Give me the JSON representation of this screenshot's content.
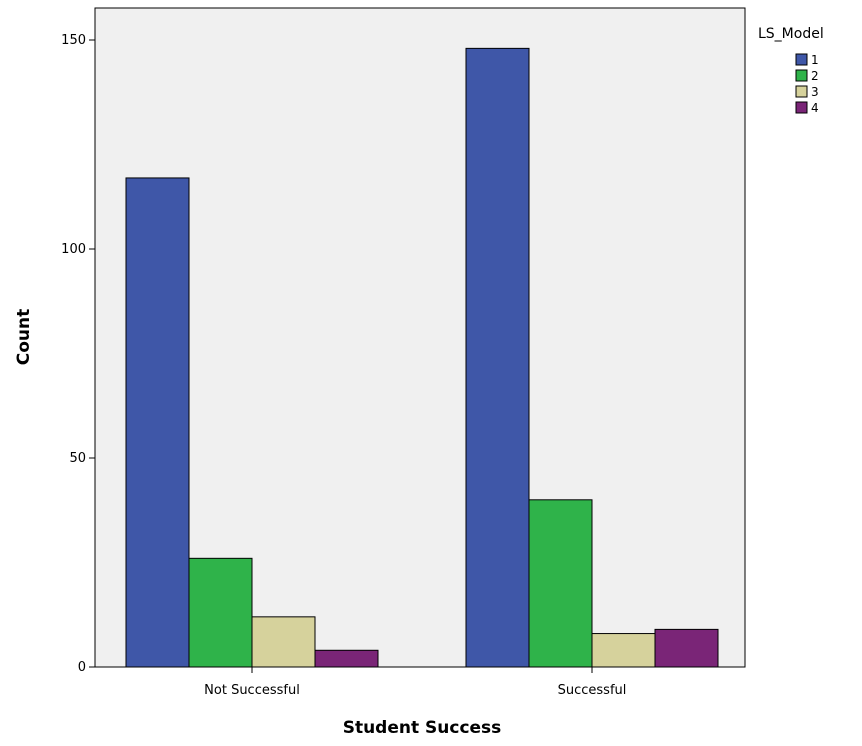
{
  "chart_data": {
    "type": "bar",
    "xlabel": "Student Success",
    "ylabel": "Count",
    "categories": [
      "Not Successful",
      "Successful"
    ],
    "ylim": [
      0,
      150
    ],
    "yticks": [
      0,
      50,
      100,
      150
    ],
    "grid": false,
    "legend": {
      "title": "LS_Model",
      "position": "right"
    },
    "series": [
      {
        "name": "1",
        "color": "#3f57a8",
        "values": [
          117,
          148
        ]
      },
      {
        "name": "2",
        "color": "#2fb34a",
        "values": [
          26,
          40
        ]
      },
      {
        "name": "3",
        "color": "#d6d29c",
        "values": [
          12,
          8
        ]
      },
      {
        "name": "4",
        "color": "#7a2577",
        "values": [
          4,
          9
        ]
      }
    ],
    "plot_background": "#f0f0f0"
  }
}
